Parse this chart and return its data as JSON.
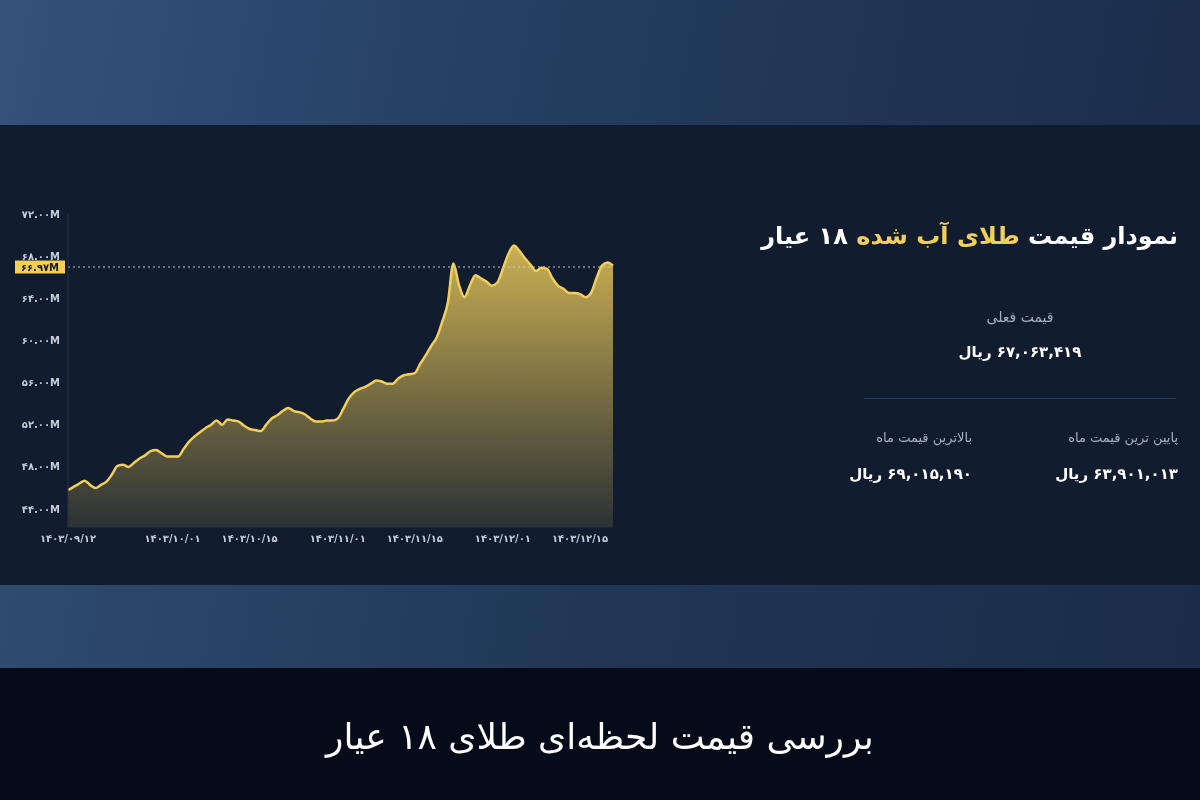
{
  "chart_data": {
    "type": "area",
    "title": "نمودار قیمت طلای آب شده ۱۸ عیار",
    "annotations": [
      "قیمت فعلی",
      "۶۷,۰۶۳,۴۱۹ ریال",
      "بالاترین قیمت ماه",
      "۶۹,۰۱۵,۱۹۰ ریال",
      "پایین ترین قیمت ماه",
      "۶۳,۹۰۱,۰۱۳ ریال",
      "بررسی قیمت لحظه‌ای طلای ۱۸ عیار"
    ],
    "categories": [
      "۱۴۰۳/۰۹/۱۲",
      null,
      null,
      null,
      null,
      null,
      null,
      null,
      null,
      null,
      null,
      null,
      null,
      null,
      null,
      null,
      null,
      null,
      null,
      "۱۴۰۳/۱۰/۰۱",
      null,
      null,
      null,
      null,
      null,
      null,
      null,
      null,
      null,
      null,
      null,
      null,
      null,
      "۱۴۰۳/۱۰/۱۵",
      null,
      null,
      null,
      null,
      null,
      null,
      null,
      null,
      null,
      null,
      null,
      null,
      null,
      null,
      null,
      "۱۴۰۳/۱۱/۰۱",
      null,
      null,
      null,
      null,
      null,
      null,
      null,
      null,
      null,
      null,
      null,
      null,
      null,
      "۱۴۰۳/۱۱/۱۵",
      null,
      null,
      null,
      null,
      null,
      null,
      null,
      null,
      null,
      null,
      null,
      null,
      null,
      null,
      null,
      "۱۴۰۳/۱۲/۰۱",
      null,
      null,
      null,
      null,
      null,
      null,
      null,
      null,
      null,
      null,
      null,
      null,
      null,
      "۱۴۰۳/۱۲/۱۵",
      null,
      null,
      null,
      null,
      null,
      null
    ],
    "values": [
      45.8,
      46.1,
      46.4,
      46.7,
      46.3,
      46.0,
      46.3,
      46.6,
      47.3,
      48.1,
      48.2,
      48.0,
      48.4,
      48.8,
      49.1,
      49.5,
      49.6,
      49.3,
      49.0,
      49.0,
      49.0,
      49.7,
      50.4,
      50.9,
      51.3,
      51.7,
      52.0,
      52.4,
      52.0,
      52.5,
      52.4,
      52.3,
      51.9,
      51.6,
      51.5,
      51.4,
      52.0,
      52.6,
      52.9,
      53.3,
      53.6,
      53.3,
      53.2,
      53.0,
      52.6,
      52.3,
      52.3,
      52.4,
      52.4,
      52.6,
      53.5,
      54.5,
      55.1,
      55.4,
      55.6,
      55.9,
      56.2,
      56.1,
      55.9,
      55.9,
      56.4,
      56.7,
      56.8,
      56.9,
      57.8,
      58.6,
      59.5,
      60.3,
      61.8,
      63.6,
      67.3,
      65.3,
      64.1,
      65.2,
      66.2,
      65.9,
      65.6,
      65.2,
      65.5,
      66.8,
      68.2,
      69.0,
      68.5,
      67.8,
      67.2,
      66.6,
      66.9,
      66.8,
      65.9,
      65.2,
      64.9,
      64.5,
      64.5,
      64.4,
      64.1,
      64.5,
      65.9,
      67.1,
      67.4,
      67.1
    ],
    "color": "#f2cf5b",
    "ylim": [
      42.3,
      72
    ],
    "yticks": [
      {
        "value": 44,
        "label": "۴۴.۰۰M"
      },
      {
        "value": 48,
        "label": "۴۸.۰۰M"
      },
      {
        "value": 52,
        "label": "۵۲.۰۰M"
      },
      {
        "value": 56,
        "label": "۵۶.۰۰M"
      },
      {
        "value": 60,
        "label": "۶۰.۰۰M"
      },
      {
        "value": 64,
        "label": "۶۴.۰۰M"
      },
      {
        "value": 68,
        "label": "۶۸.۰۰M"
      },
      {
        "value": 72,
        "label": "۷۲.۰۰M"
      }
    ],
    "ref_lines": [
      {
        "axis": "y",
        "value": 66.97,
        "label": "۶۶.۹۷M",
        "color": "#c9c9c9",
        "line_style": "dotted"
      }
    ]
  }
}
